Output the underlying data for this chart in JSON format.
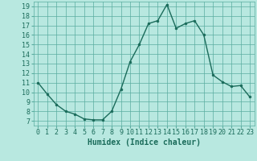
{
  "x": [
    0,
    1,
    2,
    3,
    4,
    5,
    6,
    7,
    8,
    9,
    10,
    11,
    12,
    13,
    14,
    15,
    16,
    17,
    18,
    19,
    20,
    21,
    22,
    23
  ],
  "y": [
    11.0,
    9.8,
    8.7,
    8.0,
    7.7,
    7.2,
    7.1,
    7.1,
    8.0,
    10.3,
    13.2,
    15.0,
    17.2,
    17.5,
    19.2,
    16.7,
    17.2,
    17.5,
    16.0,
    11.8,
    11.1,
    10.6,
    10.7,
    9.5
  ],
  "line_color": "#1a6b5a",
  "marker_color": "#1a6b5a",
  "bg_color": "#b8e8e0",
  "grid_color": "#5aada0",
  "xlabel": "Humidex (Indice chaleur)",
  "xlim": [
    -0.5,
    23.5
  ],
  "ylim": [
    6.5,
    19.5
  ],
  "xticks": [
    0,
    1,
    2,
    3,
    4,
    5,
    6,
    7,
    8,
    9,
    10,
    11,
    12,
    13,
    14,
    15,
    16,
    17,
    18,
    19,
    20,
    21,
    22,
    23
  ],
  "yticks": [
    7,
    8,
    9,
    10,
    11,
    12,
    13,
    14,
    15,
    16,
    17,
    18,
    19
  ],
  "xlabel_fontsize": 7,
  "tick_fontsize": 6,
  "marker_size": 2,
  "line_width": 1.0
}
